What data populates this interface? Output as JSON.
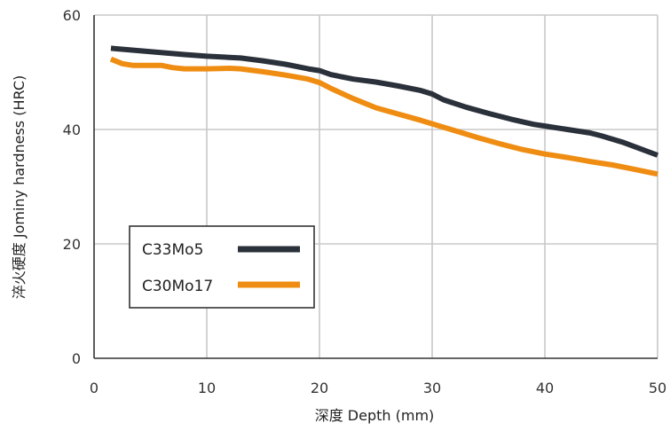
{
  "chart_data": {
    "type": "line",
    "xlabel": "深度  Depth (mm)",
    "ylabel": "淬火硬度 Jominy hardness (HRC)",
    "xlim": [
      0,
      50
    ],
    "ylim": [
      0,
      60
    ],
    "xticks": [
      0,
      10,
      20,
      30,
      40,
      50
    ],
    "yticks": [
      0,
      20,
      40,
      60
    ],
    "grid": true,
    "legend": "lower-left",
    "series": [
      {
        "name": "C33Mo5",
        "color": "#2b313a",
        "x": [
          1.5,
          5,
          8,
          10,
          12,
          13,
          15,
          17,
          19,
          20,
          21,
          23,
          25,
          27,
          29,
          30,
          31,
          33,
          35,
          37,
          39,
          40,
          42,
          44,
          45,
          47,
          50
        ],
        "y": [
          54.2,
          53.6,
          53.1,
          52.8,
          52.6,
          52.5,
          52.0,
          51.4,
          50.6,
          50.3,
          49.6,
          48.8,
          48.3,
          47.6,
          46.8,
          46.2,
          45.2,
          43.9,
          42.8,
          41.8,
          40.9,
          40.6,
          40.0,
          39.4,
          38.9,
          37.7,
          35.5
        ]
      },
      {
        "name": "C30Mo17",
        "color": "#ef8c12",
        "x": [
          1.5,
          2.5,
          3.5,
          5,
          6,
          7,
          8,
          10,
          12,
          13,
          15,
          17,
          19,
          20,
          21,
          23,
          25,
          27,
          29,
          30,
          32,
          34,
          36,
          38,
          40,
          42,
          44,
          46,
          48,
          50
        ],
        "y": [
          52.3,
          51.5,
          51.2,
          51.2,
          51.2,
          50.8,
          50.6,
          50.6,
          50.7,
          50.6,
          50.1,
          49.5,
          48.8,
          48.2,
          47.2,
          45.4,
          43.8,
          42.7,
          41.6,
          41.0,
          39.8,
          38.6,
          37.5,
          36.5,
          35.7,
          35.1,
          34.4,
          33.8,
          33.0,
          32.2
        ]
      }
    ]
  }
}
